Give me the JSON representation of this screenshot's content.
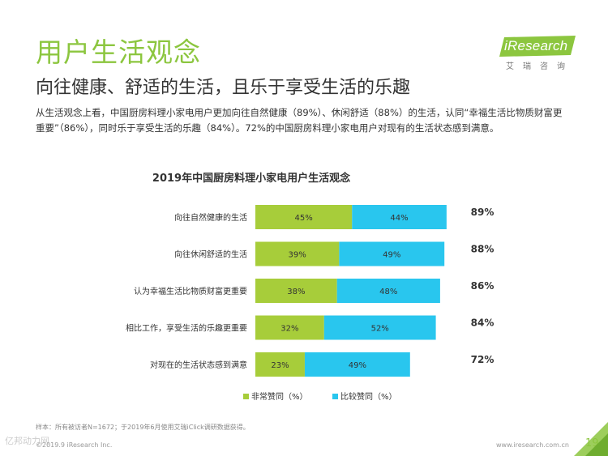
{
  "header": {
    "title": "用户生活观念",
    "subtitle": "向往健康、舒适的生活，且乐于享受生活的乐趣",
    "intro": "从生活观念上看，中国厨房料理小家电用户更加向往自然健康（89%）、休闲舒适（88%）的生活，认同“幸福生活比物质财富更重要”（86%），同时乐于享受生活的乐趣（84%）。72%的中国厨房料理小家电用户对现有的生活状态感到满意。"
  },
  "logo": {
    "wordmark": "iResearch",
    "subtitle": "艾瑞咨询",
    "colors": {
      "badge": "#8cc63f"
    }
  },
  "chart_data": {
    "type": "bar",
    "orientation": "horizontal",
    "stacked": true,
    "title": "2019年中国厨房料理小家电用户生活观念",
    "categories": [
      "向往自然健康的生活",
      "向往休闲舒适的生活",
      "认为幸福生活比物质财富更重要",
      "相比工作，享受生活的乐趣更重要",
      "对现在的生活状态感到满意"
    ],
    "series": [
      {
        "name": "非常赞同（%）",
        "values": [
          45,
          39,
          38,
          32,
          23
        ],
        "labels": [
          "45%",
          "39%",
          "38%",
          "32%",
          "23%"
        ],
        "color": "#a7cd3a"
      },
      {
        "name": "比较赞同（%）",
        "values": [
          44,
          49,
          48,
          52,
          49
        ],
        "labels": [
          "44%",
          "49%",
          "48%",
          "52%",
          "49%"
        ],
        "color": "#29c6ee"
      }
    ],
    "totals": [
      "89%",
      "88%",
      "86%",
      "84%",
      "72%"
    ],
    "xlim": [
      0,
      100
    ],
    "grid": false,
    "legend": "bottom"
  },
  "footer": {
    "footnote": "样本：所有被访者N=1672；于2019年6月使用艾瑞iClick调研数据获得。",
    "copyright": "©2019.9 iResearch Inc.",
    "url": "www.iresearch.com.cn",
    "page_number": "19",
    "watermark": "亿邦动力网"
  }
}
